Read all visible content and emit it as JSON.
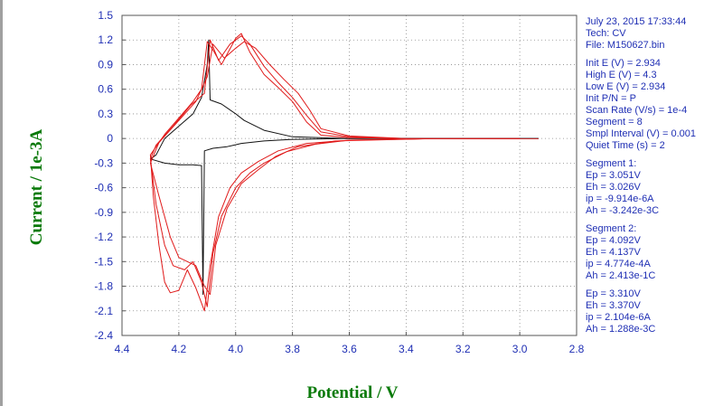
{
  "chart_data": {
    "type": "line",
    "title": "",
    "xlabel": "Potential / V",
    "ylabel": "Current / 1e-3A",
    "xlim": [
      4.4,
      2.8
    ],
    "ylim": [
      -2.4,
      1.5
    ],
    "x_ticks": [
      "4.4",
      "4.2",
      "4.0",
      "3.8",
      "3.6",
      "3.4",
      "3.2",
      "3.0",
      "2.8"
    ],
    "y_ticks": [
      "1.5",
      "1.2",
      "0.9",
      "0.6",
      "0.3",
      "0",
      "-0.3",
      "-0.6",
      "-0.9",
      "-1.2",
      "-1.5",
      "-1.8",
      "-2.1",
      "-2.4"
    ],
    "grid": true,
    "colors": {
      "axis_text": "#1f2fb4",
      "label_text": "#0a7a0a",
      "grid": "#8a8a8a",
      "cv": "#e01a1a",
      "first": "#111111",
      "baseline": "#27c6d6"
    },
    "series": [
      {
        "color": "#27c6d6",
        "points": [
          [
            3.6,
            0.005
          ],
          [
            3.2,
            0.003
          ],
          [
            2.934,
            0.003
          ]
        ]
      },
      {
        "color": "#111111",
        "points": [
          [
            2.934,
            0.0
          ],
          [
            3.2,
            0.0
          ],
          [
            3.4,
            0.0
          ],
          [
            3.6,
            0.0
          ],
          [
            3.8,
            0.02
          ],
          [
            3.9,
            0.1
          ],
          [
            3.97,
            0.22
          ],
          [
            4.0,
            0.3
          ],
          [
            4.05,
            0.42
          ],
          [
            4.09,
            0.47
          ],
          [
            4.095,
            1.2
          ],
          [
            4.1,
            0.9
          ],
          [
            4.12,
            0.5
          ],
          [
            4.15,
            0.3
          ],
          [
            4.2,
            0.15
          ],
          [
            4.25,
            0.0
          ],
          [
            4.28,
            -0.2
          ],
          [
            4.3,
            -0.25
          ],
          [
            4.25,
            -0.3
          ],
          [
            4.2,
            -0.32
          ],
          [
            4.15,
            -0.32
          ],
          [
            4.12,
            -0.33
          ],
          [
            4.115,
            -1.9
          ],
          [
            4.11,
            -0.15
          ],
          [
            4.08,
            -0.12
          ],
          [
            4.03,
            -0.1
          ],
          [
            3.98,
            -0.06
          ],
          [
            3.9,
            -0.03
          ],
          [
            3.8,
            -0.01
          ],
          [
            3.6,
            0.0
          ],
          [
            3.3,
            0.0
          ],
          [
            3.0,
            0.0
          ]
        ]
      },
      {
        "color": "#e01a1a",
        "points": [
          [
            2.934,
            0.0
          ],
          [
            3.4,
            0.0
          ],
          [
            3.6,
            0.01
          ],
          [
            3.7,
            0.04
          ],
          [
            3.75,
            0.2
          ],
          [
            3.8,
            0.45
          ],
          [
            3.85,
            0.62
          ],
          [
            3.9,
            0.78
          ],
          [
            3.95,
            1.05
          ],
          [
            3.98,
            1.28
          ],
          [
            4.0,
            1.22
          ],
          [
            4.05,
            0.9
          ],
          [
            4.08,
            1.08
          ],
          [
            4.1,
            1.18
          ],
          [
            4.12,
            0.6
          ],
          [
            4.15,
            0.45
          ],
          [
            4.2,
            0.25
          ],
          [
            4.25,
            0.05
          ],
          [
            4.3,
            -0.2
          ],
          [
            4.29,
            -0.7
          ],
          [
            4.27,
            -1.3
          ],
          [
            4.25,
            -1.75
          ],
          [
            4.23,
            -1.88
          ],
          [
            4.2,
            -1.85
          ],
          [
            4.17,
            -1.6
          ],
          [
            4.14,
            -1.82
          ],
          [
            4.11,
            -2.1
          ],
          [
            4.09,
            -1.55
          ],
          [
            4.06,
            -0.95
          ],
          [
            4.02,
            -0.6
          ],
          [
            3.98,
            -0.42
          ],
          [
            3.92,
            -0.28
          ],
          [
            3.85,
            -0.15
          ],
          [
            3.75,
            -0.06
          ],
          [
            3.6,
            -0.02
          ],
          [
            3.3,
            0.0
          ],
          [
            3.0,
            0.0
          ]
        ]
      },
      {
        "color": "#e01a1a",
        "points": [
          [
            3.0,
            0.0
          ],
          [
            3.4,
            0.0
          ],
          [
            3.6,
            0.02
          ],
          [
            3.7,
            0.08
          ],
          [
            3.75,
            0.28
          ],
          [
            3.8,
            0.5
          ],
          [
            3.85,
            0.68
          ],
          [
            3.9,
            0.88
          ],
          [
            3.95,
            1.15
          ],
          [
            3.98,
            1.25
          ],
          [
            4.02,
            1.15
          ],
          [
            4.06,
            0.95
          ],
          [
            4.09,
            1.2
          ],
          [
            4.11,
            0.55
          ],
          [
            4.16,
            0.4
          ],
          [
            4.22,
            0.15
          ],
          [
            4.28,
            -0.08
          ],
          [
            4.3,
            -0.25
          ],
          [
            4.28,
            -0.8
          ],
          [
            4.25,
            -1.3
          ],
          [
            4.22,
            -1.55
          ],
          [
            4.18,
            -1.6
          ],
          [
            4.15,
            -1.5
          ],
          [
            4.12,
            -1.75
          ],
          [
            4.1,
            -2.05
          ],
          [
            4.08,
            -1.4
          ],
          [
            4.05,
            -0.95
          ],
          [
            4.0,
            -0.6
          ],
          [
            3.95,
            -0.42
          ],
          [
            3.9,
            -0.3
          ],
          [
            3.82,
            -0.16
          ],
          [
            3.72,
            -0.07
          ],
          [
            3.6,
            -0.02
          ],
          [
            3.3,
            0.0
          ],
          [
            3.0,
            0.0
          ]
        ]
      },
      {
        "color": "#e01a1a",
        "points": [
          [
            3.0,
            0.0
          ],
          [
            3.4,
            0.0
          ],
          [
            3.6,
            0.03
          ],
          [
            3.7,
            0.12
          ],
          [
            3.74,
            0.35
          ],
          [
            3.78,
            0.55
          ],
          [
            3.83,
            0.72
          ],
          [
            3.88,
            0.9
          ],
          [
            3.93,
            1.1
          ],
          [
            3.97,
            1.18
          ],
          [
            4.0,
            1.1
          ],
          [
            4.04,
            0.98
          ],
          [
            4.08,
            1.15
          ],
          [
            4.1,
            0.75
          ],
          [
            4.14,
            0.45
          ],
          [
            4.2,
            0.22
          ],
          [
            4.27,
            -0.05
          ],
          [
            4.3,
            -0.3
          ],
          [
            4.27,
            -0.7
          ],
          [
            4.23,
            -1.2
          ],
          [
            4.2,
            -1.45
          ],
          [
            4.17,
            -1.5
          ],
          [
            4.14,
            -1.55
          ],
          [
            4.11,
            -1.8
          ],
          [
            4.09,
            -1.9
          ],
          [
            4.07,
            -1.3
          ],
          [
            4.03,
            -0.85
          ],
          [
            3.98,
            -0.55
          ],
          [
            3.92,
            -0.38
          ],
          [
            3.86,
            -0.22
          ],
          [
            3.78,
            -0.1
          ],
          [
            3.65,
            -0.03
          ],
          [
            3.3,
            0.0
          ],
          [
            3.0,
            0.0
          ]
        ]
      }
    ]
  },
  "info": {
    "header": [
      "July 23, 2015   17:33:44",
      "Tech: CV",
      "File: M150627.bin"
    ],
    "params": [
      "Init E (V) = 2.934",
      "High E (V) = 4.3",
      "Low E (V) = 2.934",
      "Init P/N = P",
      "Scan Rate (V/s) = 1e-4",
      "Segment = 8",
      "Smpl Interval (V) = 0.001",
      "Quiet Time (s) = 2"
    ],
    "segment1": [
      "Segment 1:",
      "Ep = 3.051V",
      "Eh = 3.026V",
      "ip = -9.914e-6A",
      "Ah = -3.242e-3C"
    ],
    "segment2": [
      "Segment 2:",
      "Ep = 4.092V",
      "Eh = 4.137V",
      "ip = 4.774e-4A",
      "Ah = 2.413e-1C"
    ],
    "segment3": [
      "Ep = 3.310V",
      "Eh = 3.370V",
      "ip = 2.104e-6A",
      "Ah = 1.288e-3C"
    ]
  }
}
